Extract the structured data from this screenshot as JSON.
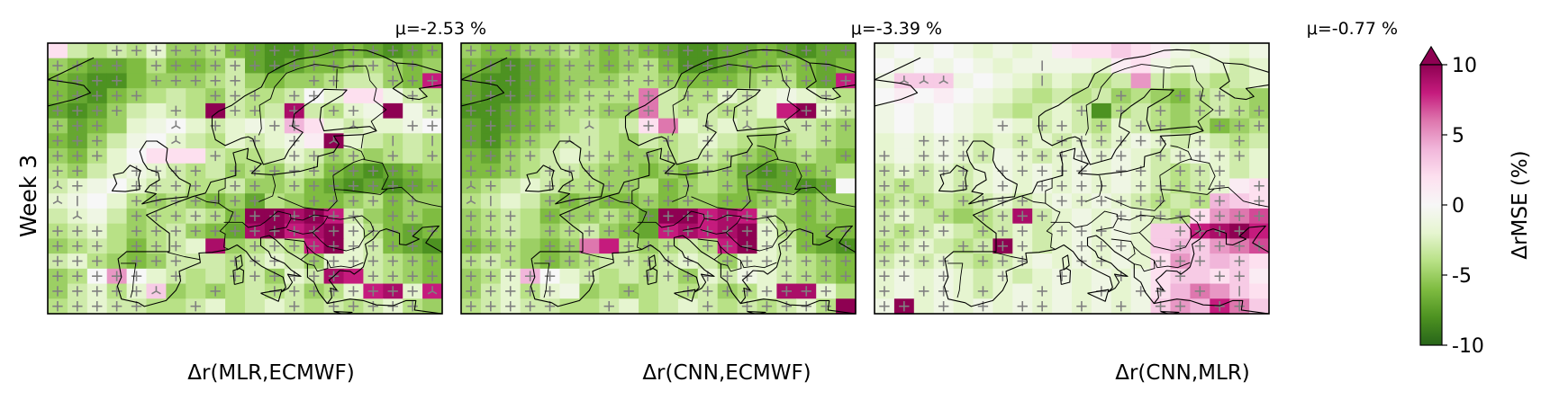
{
  "figure": {
    "row_label": "Week 3",
    "colorbar_label": "ΔrMSE (%)"
  },
  "chart_data": [
    {
      "type": "heatmap",
      "mean_label": "μ=-2.53 %",
      "xlabel": "Δr(MLR,ECMWF)",
      "grid": [
        [
          2,
          -3,
          -4,
          -3,
          -4,
          -2,
          -5,
          -5,
          -4,
          -6,
          -7,
          -8,
          -8,
          -7,
          -7,
          -6,
          -7,
          -8,
          -7,
          -6
        ],
        [
          -5,
          -6,
          -7,
          -7,
          -6,
          -4,
          -6,
          -6,
          -5,
          -3,
          -7,
          -8,
          -7,
          -6,
          -6,
          -5,
          -4,
          -5,
          -6,
          -5
        ],
        [
          -6,
          -7,
          -8,
          -8,
          -6,
          -5,
          -5,
          -5,
          -4,
          -3,
          -5,
          -6,
          -5,
          -5,
          -4,
          -3,
          -3,
          -5,
          -6,
          8
        ],
        [
          -6,
          -7,
          -8,
          -6,
          -5,
          -4,
          -3,
          -4,
          -5,
          -3,
          -4,
          -4,
          -3,
          0,
          -2,
          2,
          2,
          -1,
          -3,
          -4
        ],
        [
          -7,
          -8,
          -7,
          -5,
          -3,
          -2,
          -3,
          -4,
          10,
          -3,
          -4,
          -3,
          9,
          -3,
          -4,
          -2,
          -1,
          10,
          -1,
          -3
        ],
        [
          -5,
          -7,
          -6,
          -5,
          -2,
          -1,
          0,
          -2,
          -3,
          -2,
          -1,
          -2,
          4,
          2,
          -2,
          -3,
          -2,
          -2,
          -1,
          0
        ],
        [
          -6,
          -7,
          -5,
          -3,
          -1,
          0,
          -2,
          -3,
          -4,
          -2,
          -3,
          -2,
          -1,
          1,
          10,
          -2,
          -3,
          -4,
          -3,
          -4
        ],
        [
          -5,
          -6,
          -4,
          -2,
          0,
          2,
          2,
          2,
          -3,
          -4,
          -4,
          -3,
          -2,
          -3,
          -5,
          -4,
          -5,
          -4,
          -3,
          -4
        ],
        [
          -4,
          -5,
          -3,
          -2,
          -1,
          -2,
          -3,
          -4,
          -3,
          -5,
          -4,
          -5,
          -3,
          -4,
          -6,
          -7,
          -8,
          -7,
          -6,
          -5
        ],
        [
          -3,
          -2,
          -1,
          0,
          -2,
          -3,
          -3,
          -4,
          -4,
          -3,
          -5,
          -5,
          -4,
          -6,
          -7,
          -8,
          -7,
          -8,
          -7,
          -6
        ],
        [
          -2,
          -1,
          0,
          -2,
          -4,
          -5,
          -4,
          -5,
          -6,
          -5,
          -7,
          -4,
          -5,
          -6,
          -6,
          -5,
          -4,
          -6,
          -5,
          -5
        ],
        [
          -3,
          -2,
          -1,
          -3,
          -5,
          -4,
          -4,
          -3,
          -4,
          -6,
          10,
          10,
          9,
          10,
          8,
          -3,
          -5,
          -6,
          -5,
          -6
        ],
        [
          -4,
          -3,
          -2,
          -4,
          -5,
          -4,
          -3,
          -5,
          -6,
          -7,
          9,
          10,
          8,
          9,
          10,
          -2,
          -4,
          -6,
          -7,
          -6
        ],
        [
          -5,
          -4,
          -3,
          -4,
          -6,
          -4,
          -3,
          -2,
          9,
          -5,
          -4,
          -3,
          -4,
          8,
          10,
          -2,
          -3,
          -6,
          -7,
          -8
        ],
        [
          -3,
          -2,
          -4,
          -5,
          -6,
          -5,
          -3,
          -3,
          -3,
          -4,
          -3,
          -2,
          -3,
          -5,
          -2,
          -2,
          -3,
          -4,
          -5,
          -6
        ],
        [
          -5,
          -4,
          0,
          5,
          0,
          -2,
          -3,
          -4,
          -3,
          -4,
          -3,
          -5,
          -2,
          -3,
          9,
          8,
          -3,
          -4,
          -5,
          -6
        ],
        [
          -5,
          -3,
          -2,
          -4,
          -2,
          3,
          -5,
          -4,
          -5,
          -4,
          -3,
          -4,
          -3,
          -5,
          -4,
          -2,
          8,
          9,
          -2,
          8
        ],
        [
          -4,
          -3,
          -2,
          -3,
          -3,
          -4,
          -4,
          -3,
          -2,
          -4,
          -3,
          -2,
          -3,
          -4,
          -3,
          -4,
          -3,
          -2,
          -4,
          -5
        ]
      ],
      "markers": [
        "   +++++++++++++++++",
        "++++ ++++++++++++++ ",
        "++++ +++++   ++  +++",
        "+++++   +++ ++    + ",
        "++++  +  ++ + ++   +",
        "+++   Y +  ++  Y  ++",
        "+++   Y   + + Y  | |",
        "+++     +   ++++ + +",
        "++  ++++ ++++++++++ ",
        "Y+  ++++ ++ ++++++++",
        "Y|  +++++++  ++++++ ",
        " Y  ++++++++++++ ++ ",
        "+++ ++++++++++++++++",
        "+++ +++   +++++++++ ",
        "+++ +++  +++ +++++++",
        "+++++ +  ++++++ ++++",
        "+++++Y  +  ++++++++Y",
        "+++++  +    + +++++ "
      ],
      "xlim": [
        -20,
        40
      ],
      "ylim": [
        35,
        72
      ]
    },
    {
      "type": "heatmap",
      "mean_label": "μ=-3.39 %",
      "xlabel": "Δr(CNN,ECMWF)",
      "grid": [
        [
          -5,
          -6,
          -6,
          -5,
          -5,
          -4,
          -5,
          -6,
          -5,
          -6,
          -7,
          -8,
          -8,
          -7,
          -7,
          -6,
          -7,
          -8,
          -7,
          -7
        ],
        [
          -6,
          -7,
          -8,
          -7,
          -6,
          -5,
          -5,
          -6,
          -5,
          -4,
          -6,
          -8,
          -8,
          -7,
          -6,
          -6,
          -5,
          -6,
          -7,
          -6
        ],
        [
          -7,
          -8,
          -8,
          -7,
          -6,
          -5,
          -5,
          -5,
          -4,
          -4,
          -5,
          -6,
          -6,
          -6,
          -5,
          -4,
          -4,
          -6,
          -7,
          8
        ],
        [
          -7,
          -8,
          -8,
          -7,
          -6,
          -5,
          -4,
          -4,
          -4,
          6,
          -3,
          -4,
          -4,
          -2,
          -3,
          -2,
          -1,
          -2,
          -3,
          -4
        ],
        [
          -8,
          -8,
          -7,
          -6,
          -5,
          -4,
          -4,
          -5,
          -5,
          6,
          -3,
          -4,
          -3,
          -4,
          -3,
          -2,
          8,
          10,
          -2,
          -3
        ],
        [
          -7,
          -8,
          -7,
          -6,
          -5,
          -4,
          -3,
          -4,
          -3,
          2,
          6,
          -2,
          -3,
          -2,
          -3,
          -4,
          -3,
          -3,
          -4,
          -5
        ],
        [
          -7,
          -8,
          -6,
          -5,
          -4,
          -3,
          -3,
          -4,
          -5,
          -3,
          -4,
          -3,
          -2,
          -3,
          -4,
          -5,
          -4,
          -3,
          -4,
          -5
        ],
        [
          -6,
          -7,
          -5,
          -4,
          -3,
          -2,
          -3,
          -4,
          -5,
          -5,
          -4,
          -3,
          -3,
          -4,
          -5,
          -6,
          -5,
          -4,
          -5,
          -6
        ],
        [
          -6,
          -6,
          -5,
          -4,
          -3,
          -3,
          -4,
          -5,
          -5,
          -6,
          -5,
          -6,
          -4,
          -5,
          -7,
          -8,
          -7,
          -6,
          -5,
          -4
        ],
        [
          -5,
          -4,
          -3,
          -2,
          -3,
          -4,
          -4,
          -5,
          -5,
          -4,
          -6,
          -5,
          -4,
          -5,
          -6,
          -7,
          -7,
          -8,
          -7,
          0
        ],
        [
          -4,
          -3,
          -2,
          -3,
          -5,
          -6,
          -5,
          -6,
          -6,
          -5,
          -6,
          -5,
          -5,
          -6,
          -6,
          -5,
          -4,
          -6,
          -5,
          -5
        ],
        [
          -5,
          -4,
          -3,
          -4,
          -6,
          -5,
          -5,
          -4,
          -5,
          -7,
          10,
          10,
          8,
          9,
          8,
          -3,
          -5,
          -6,
          -5,
          -6
        ],
        [
          -5,
          -4,
          -3,
          -4,
          -5,
          -4,
          -3,
          -5,
          -6,
          -7,
          8,
          9,
          8,
          9,
          10,
          -2,
          -4,
          -6,
          -6,
          -6
        ],
        [
          -6,
          -5,
          -4,
          -5,
          -6,
          -5,
          6,
          8,
          -4,
          -5,
          -4,
          -3,
          -4,
          8,
          10,
          -2,
          -3,
          -6,
          -7,
          -8
        ],
        [
          -4,
          -3,
          -4,
          -5,
          -6,
          -5,
          -4,
          -3,
          -3,
          -4,
          -3,
          -2,
          -3,
          -5,
          -2,
          -2,
          -3,
          -4,
          -5,
          -6
        ],
        [
          -5,
          -4,
          -2,
          4,
          0,
          -2,
          -3,
          -4,
          -3,
          -4,
          -3,
          -5,
          -2,
          -3,
          -1,
          -2,
          -3,
          -4,
          -5,
          -6
        ],
        [
          -5,
          -3,
          -2,
          -4,
          -2,
          -1,
          -5,
          -4,
          -5,
          -4,
          -3,
          -4,
          -3,
          -5,
          -4,
          -2,
          9,
          9,
          -2,
          -4
        ],
        [
          -4,
          -3,
          -2,
          -3,
          -3,
          -4,
          -4,
          -3,
          -2,
          -4,
          -3,
          -2,
          -3,
          -4,
          -3,
          -4,
          -3,
          -2,
          -4,
          10
        ]
      ],
      "markers": [
        "++++++++++++++++++++",
        "+++++++++++++++++++ ",
        "++++++++++++++ +++++",
        "++++++++++ ++++   + ",
        "++++++++++ + ++  +++",
        "+++++ Y  +  + Y  +++",
        "++++ Y|   + +   + + ",
        "++++  +++++ ++++ + +",
        "+++ +++++ +++++++++ ",
        "Y+  +++++ ++ ++++++ ",
        "Y|  ++++++++ ++++++ ",
        "+++ ++++++++++++ ++ ",
        "+++ +++++ ++++++++++",
        "+++ ++  +++ ++++++ +",
        "+++ +++ ++++ +++++++",
        "+++++ +  ++++++ ++++",
        "+++++   +  ++++++++ ",
        "+++++  +    + +++++ "
      ],
      "xlim": [
        -20,
        40
      ],
      "ylim": [
        35,
        72
      ]
    },
    {
      "type": "heatmap",
      "mean_label": "μ=-0.77 %",
      "xlabel": "Δr(CNN,MLR)",
      "grid": [
        [
          -1,
          0,
          -1,
          0,
          -1,
          -2,
          -1,
          -2,
          -1,
          1,
          2,
          2,
          3,
          2,
          1,
          -1,
          -2,
          -1,
          -2,
          -1
        ],
        [
          0,
          -1,
          0,
          -1,
          0,
          -1,
          -2,
          -1,
          -1,
          -1,
          -1,
          -2,
          1,
          2,
          -1,
          -2,
          -1,
          -2,
          -3,
          -2
        ],
        [
          -1,
          3,
          3,
          3,
          -1,
          0,
          -1,
          -2,
          -3,
          -2,
          -3,
          -4,
          -3,
          5,
          -3,
          -4,
          -3,
          -4,
          -3,
          -2
        ],
        [
          0,
          1,
          0,
          1,
          0,
          -1,
          -2,
          -3,
          -4,
          -3,
          -4,
          -3,
          -5,
          -4,
          -5,
          -6,
          -4,
          -3,
          -4,
          -5
        ],
        [
          -1,
          0,
          -1,
          0,
          -1,
          -2,
          -3,
          -4,
          -3,
          -2,
          -3,
          -8,
          -4,
          -3,
          -4,
          -5,
          -4,
          -3,
          -4,
          -5
        ],
        [
          -1,
          0,
          -1,
          0,
          -1,
          -2,
          -1,
          -2,
          -3,
          -2,
          -3,
          -4,
          -2,
          -3,
          -4,
          -5,
          -4,
          -6,
          -5,
          -4
        ],
        [
          -2,
          -1,
          -2,
          -1,
          -2,
          -3,
          -2,
          -3,
          -2,
          -3,
          -2,
          -3,
          -2,
          -1,
          -2,
          -3,
          -2,
          -3,
          -4,
          -3
        ],
        [
          -2,
          -1,
          -2,
          -1,
          -2,
          -3,
          -1,
          -2,
          -3,
          -2,
          -1,
          -2,
          -1,
          -2,
          -3,
          -2,
          -1,
          -2,
          -3,
          -2
        ],
        [
          -3,
          -2,
          -3,
          -2,
          -3,
          -2,
          -1,
          -2,
          -1,
          -2,
          -1,
          -2,
          -1,
          -2,
          -3,
          -4,
          -3,
          -2,
          -3,
          -2
        ],
        [
          -3,
          -4,
          -3,
          -2,
          -3,
          -2,
          -1,
          -2,
          -1,
          -2,
          -1,
          -2,
          -1,
          -2,
          -3,
          -4,
          -3,
          -2,
          1,
          2
        ],
        [
          -4,
          -3,
          -4,
          -3,
          -4,
          -3,
          -2,
          -3,
          -2,
          -1,
          -2,
          -1,
          -2,
          -3,
          -4,
          -3,
          -4,
          4,
          3,
          2
        ],
        [
          -3,
          -2,
          -3,
          -4,
          -5,
          -4,
          -3,
          9,
          -3,
          -2,
          -1,
          -2,
          -1,
          -2,
          -3,
          -4,
          2,
          5,
          6,
          7
        ],
        [
          -3,
          -4,
          -3,
          -2,
          -3,
          -4,
          -3,
          -2,
          -3,
          -2,
          -1,
          -2,
          -1,
          -2,
          3,
          3,
          8,
          9,
          10,
          8
        ],
        [
          -4,
          -3,
          -2,
          -3,
          -4,
          -3,
          10,
          -2,
          -3,
          -2,
          -1,
          -2,
          -1,
          -2,
          3,
          4,
          3,
          5,
          6,
          7
        ],
        [
          -3,
          -2,
          -3,
          -2,
          -3,
          -4,
          -3,
          -2,
          -1,
          -2,
          -1,
          -2,
          -1,
          -2,
          2,
          5,
          3,
          4,
          3,
          2
        ],
        [
          -2,
          -1,
          -2,
          -1,
          -2,
          -3,
          -2,
          -3,
          -2,
          -1,
          -2,
          -1,
          -2,
          -1,
          2,
          3,
          3,
          2,
          3,
          1
        ],
        [
          -2,
          -1,
          -2,
          -1,
          -2,
          -3,
          -2,
          -1,
          -2,
          -1,
          -2,
          -1,
          -2,
          -1,
          2,
          4,
          6,
          5,
          3,
          2
        ],
        [
          -1,
          10,
          -2,
          -1,
          -2,
          -1,
          -2,
          -1,
          -2,
          -1,
          -2,
          -1,
          -2,
          -1,
          3,
          5,
          4,
          8,
          6,
          3
        ]
      ],
      "markers": [
        "                    ",
        "        |           ",
        " YYY    |           ",
        "            +  +++  ",
        "          + + + ++++",
        "      + ++ + ++  +++",
        "  +++  + ++++++ + + ",
        "+ ++++ ++++++ +++++ ",
        "+++++ +++++ ++ +++  ",
        "++  + + ++++ +++++ +",
        "+++ ++++ ++++++ ++ +",
        "++ + ++++   ++++++++",
        "++++ +++ +++   ++++ ",
        "+++ ++++  +++  +++++",
        "++++ +++  ++  +++ + ",
        "++ +  +  +  +  + ++ ",
        "+ ++ +  +  + ++ + | ",
        "++ + + ++ + + ++ ++ "
      ],
      "xlim": [
        -20,
        40
      ],
      "ylim": [
        35,
        72
      ]
    }
  ],
  "colorbar": {
    "min": -10,
    "max": 10,
    "ticks": [
      10,
      5,
      0,
      -5,
      -10
    ],
    "tick_labels": [
      "10",
      "5",
      "0",
      "-5",
      "-10"
    ],
    "extend": "max",
    "colormap": "PiYG",
    "colors": [
      "#276419",
      "#4d9221",
      "#7fbc41",
      "#b8e186",
      "#e6f5d0",
      "#f7f7f7",
      "#fde0ef",
      "#f1b6da",
      "#de77ae",
      "#c51b7d",
      "#8e0152"
    ]
  },
  "marker_color": "#808080"
}
